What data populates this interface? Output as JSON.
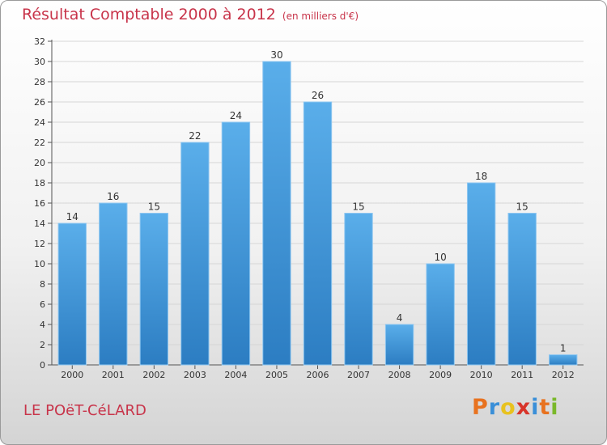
{
  "header": {
    "title": "Résultat Comptable 2000 à 2012",
    "subtitle": "(en milliers d'€)"
  },
  "footer": {
    "commune": "LE POëT-CéLARD",
    "logo_letters": [
      "P",
      "r",
      "o",
      "x",
      "i",
      "t",
      "i"
    ],
    "logo_colors": [
      "#e8721f",
      "#3a8fd8",
      "#e8c21f",
      "#d8342a",
      "#3a8fd8",
      "#e8721f",
      "#7ab82a"
    ]
  },
  "colors": {
    "bar_light": "#5aaeea",
    "bar_dark": "#2c7dc2",
    "title": "#c8344a"
  },
  "chart_data": {
    "type": "bar",
    "title": "Résultat Comptable 2000 à 2012",
    "xlabel": "",
    "ylabel": "",
    "categories": [
      "2000",
      "2001",
      "2002",
      "2003",
      "2004",
      "2005",
      "2006",
      "2007",
      "2008",
      "2009",
      "2010",
      "2011",
      "2012"
    ],
    "values": [
      14,
      16,
      15,
      22,
      24,
      30,
      26,
      15,
      4,
      10,
      18,
      15,
      1
    ],
    "ylim": [
      0,
      32
    ],
    "yticks": [
      0,
      2,
      4,
      6,
      8,
      10,
      12,
      14,
      16,
      18,
      20,
      22,
      24,
      26,
      28,
      30,
      32
    ],
    "grid": true
  }
}
